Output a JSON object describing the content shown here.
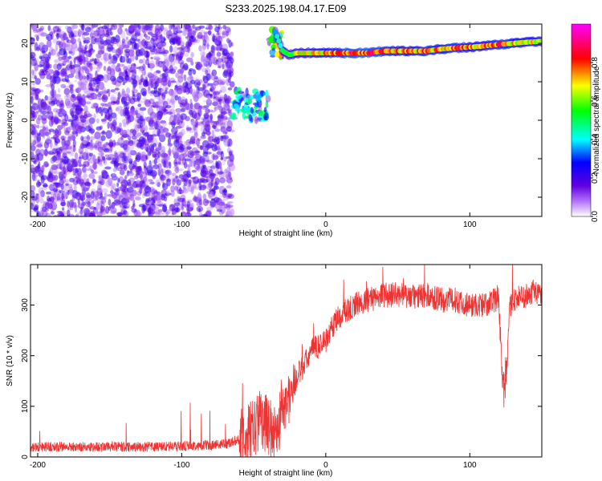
{
  "title": "S233.2025.198.04.17.E09",
  "chart_data": [
    {
      "type": "heatmap",
      "xlabel": "Height of straight line (km)",
      "ylabel": "Frequency (Hz)",
      "xlim": [
        -205,
        150
      ],
      "ylim": [
        -25,
        25
      ],
      "xticks": [
        -200,
        -100,
        0,
        100
      ],
      "yticks": [
        -20,
        -10,
        0,
        10,
        20
      ],
      "xtick_labels": [
        "-200",
        "-100",
        "0",
        "100"
      ],
      "ytick_labels": [
        "-20",
        "-10",
        "0",
        "10",
        "20"
      ],
      "colorbar": {
        "label": "Normalized spectral amplitude",
        "range": [
          0,
          1
        ],
        "ticks": [
          0.0,
          0.2,
          0.4,
          0.6,
          0.8
        ],
        "tick_labels": [
          "0.0",
          "0.2",
          "0.4",
          "0.6",
          "0.8"
        ],
        "colors": [
          "#ffffff",
          "#b070ff",
          "#6000e0",
          "#0000ff",
          "#00ffff",
          "#00ff00",
          "#ffff00",
          "#ff0000",
          "#ff00ff"
        ]
      },
      "regions": [
        {
          "name": "noise",
          "x": [
            -205,
            -65
          ],
          "freq": [
            -25,
            25
          ],
          "amplitude": 0.15
        },
        {
          "name": "onset burst",
          "x": [
            -65,
            -40
          ],
          "freq": [
            0,
            8
          ],
          "amplitude": 0.35
        },
        {
          "name": "signal rise",
          "x": [
            -40,
            -30
          ],
          "freq": [
            16,
            24
          ],
          "amplitude": 0.5
        }
      ],
      "signal_line": {
        "x": [
          -35,
          -30,
          -25,
          -20,
          -10,
          0,
          10,
          20,
          30,
          40,
          50,
          60,
          70,
          80,
          90,
          100,
          110,
          120,
          130,
          140,
          150
        ],
        "freq": [
          23,
          18,
          17,
          17.5,
          17.5,
          17.5,
          17.5,
          17.5,
          17.5,
          18,
          18,
          18,
          18,
          18.5,
          18.8,
          19,
          19.3,
          19.7,
          20,
          20.3,
          20.5
        ],
        "amplitude": [
          0.4,
          0.5,
          0.6,
          0.7,
          0.75,
          0.8,
          0.85,
          0.9,
          0.9,
          0.85,
          0.8,
          0.8,
          0.85,
          0.8,
          0.85,
          0.8,
          0.8,
          0.85,
          0.8,
          0.75,
          0.7
        ]
      }
    },
    {
      "type": "line",
      "xlabel": "Height of straight line (km)",
      "ylabel": "SNR (10 * v/v)",
      "xlim": [
        -205,
        150
      ],
      "ylim": [
        0,
        380
      ],
      "xticks": [
        -200,
        -100,
        0,
        100
      ],
      "yticks": [
        0,
        100,
        200,
        300
      ],
      "xtick_labels": [
        "-200",
        "-100",
        "0",
        "100"
      ],
      "ytick_labels": [
        "0",
        "100",
        "200",
        "300"
      ],
      "color": "#ee3333",
      "series": [
        {
          "x": [
            -205,
            -180,
            -150,
            -120,
            -90,
            -70,
            -60,
            -50,
            -45,
            -40,
            -35,
            -30,
            -25,
            -20,
            -15,
            -10,
            -5,
            0,
            5,
            10,
            15,
            20,
            30,
            40,
            50,
            60,
            70,
            80,
            90,
            100,
            110,
            118,
            120,
            123,
            125,
            128,
            130,
            140,
            145,
            150
          ],
          "y": [
            20,
            20,
            20,
            20,
            22,
            25,
            35,
            55,
            80,
            60,
            45,
            90,
            120,
            160,
            180,
            210,
            220,
            230,
            260,
            280,
            290,
            300,
            310,
            320,
            320,
            315,
            320,
            310,
            310,
            300,
            300,
            310,
            320,
            130,
            140,
            300,
            310,
            320,
            330,
            320
          ]
        }
      ]
    }
  ]
}
